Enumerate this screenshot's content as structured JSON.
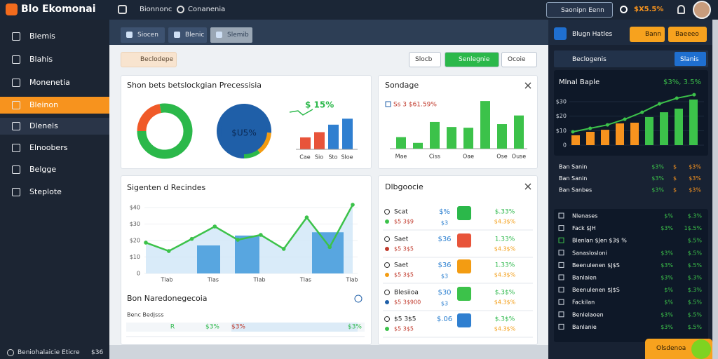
{
  "header": {
    "brand": "Blo Ekomonai",
    "nav": [
      "Bionnonc",
      "Conanenia"
    ],
    "search": "Saonipn Eenn",
    "stat": "$X5.5%"
  },
  "sidebar": {
    "items": [
      "Blemis",
      "Blahis",
      "Monenetia",
      "Bleinon",
      "Dlenels",
      "Elnoobers",
      "Belgge",
      "Steplote"
    ],
    "active": 3,
    "footer": "Beniohalaicie Eticre",
    "footer_value": "$36"
  },
  "tabs": [
    "Siocen",
    "Blenic",
    "Slemib"
  ],
  "toolbar": {
    "filter": "Beclodepe",
    "buttons": [
      "Slocb",
      "Senlegnie",
      "Ocoie"
    ]
  },
  "overview": {
    "title": "Shon bets betslockgian Precessisia",
    "donut": {
      "values": [
        22,
        78
      ],
      "colors": [
        "#f05a28",
        "#2bb84a"
      ]
    },
    "pie": {
      "label": "$U5%",
      "values": [
        76,
        14,
        10
      ],
      "colors": [
        "#1f5fa8",
        "#f39c12",
        "#2bb84a"
      ]
    },
    "bars": {
      "label": "$ 15%",
      "categories": [
        "Cae",
        "Sio",
        "Sto",
        "Sloe"
      ],
      "values": [
        16,
        23,
        33,
        41
      ],
      "colors": [
        "#e8543a",
        "#e8543a",
        "#2f7fd0",
        "#2f7fd0"
      ]
    }
  },
  "sondage": {
    "title": "Sondage",
    "legend": "Ss 3 $61.59%",
    "categories": [
      "Mae",
      null,
      "Ciss",
      null,
      "Oae",
      null,
      "Ose",
      "Ouse"
    ],
    "values": [
      16,
      8,
      37,
      30,
      29,
      66,
      34,
      46
    ],
    "color": "#3cc24a",
    "ylim": [
      0,
      70
    ]
  },
  "trend": {
    "title": "Sigenten d Recindes",
    "ylim": [
      0,
      40
    ],
    "yticks": [
      {
        "value": 40,
        "label": "$40"
      },
      {
        "value": 30,
        "label": "$30"
      },
      {
        "value": 20,
        "label": "$20"
      },
      {
        "value": 10,
        "label": "$10"
      },
      0
    ],
    "x": [
      "Tlab",
      "Tlas",
      "Tlab",
      "Tlas",
      "Tlab"
    ],
    "line": [
      18.7,
      13.6,
      21,
      28.5,
      20.4,
      23.4,
      14.9,
      34,
      16,
      41.7
    ],
    "highlights": [
      17,
      23,
      25
    ],
    "section": "Bon Naredonegecoia",
    "sub": "Benc Bedjsss",
    "cells": [
      "R",
      "$3%",
      "$3%",
      "$3%"
    ]
  },
  "list": {
    "title": "Dlbgoocie",
    "rows": [
      {
        "name": "Scat",
        "sub": "$5 3$9",
        "a": "$%",
        "b": "$3",
        "c": "$.33%",
        "d": "$4.3$%"
      },
      {
        "name": "Saet",
        "sub": "$5 3$5",
        "a": "$36",
        "b": "",
        "c": "1.33%",
        "d": "$4.3$%"
      },
      {
        "name": "Saet",
        "sub": "$5 3$5",
        "a": "$36",
        "b": "$3",
        "c": "1.33%",
        "d": "$4.3$%"
      },
      {
        "name": "Blesiioa",
        "sub": "$5 3$900",
        "a": "$30",
        "b": "$3",
        "c": "$.3$%",
        "d": "$4.3$%"
      },
      {
        "name": "$5 3$5",
        "sub": "$5 3$5",
        "a": "$.06",
        "b": "",
        "c": "$.3$%",
        "d": "$4.3$%"
      }
    ]
  },
  "panel": {
    "title": "Blugn Hatles",
    "buttons": [
      "Bann",
      "Baeeeo"
    ],
    "row": "Beclogenis",
    "row_button": "Slanis",
    "chart": {
      "title": "Mlnal Baple",
      "stat": "$3%, 3.5%",
      "ylim": [
        0,
        30
      ],
      "yticks": [
        {
          "value": 30,
          "label": "$30"
        },
        {
          "value": 20,
          "label": "$20"
        },
        {
          "value": 10,
          "label": "$10"
        },
        0
      ],
      "bars": [
        6.8,
        9.2,
        10.6,
        15,
        15.5,
        19.4,
        22.7,
        25.2,
        31.5
      ],
      "bar_colors": [
        "#f7931e",
        "#f7931e",
        "#f7931e",
        "#f7931e",
        "#f7931e",
        "#3cc24a",
        "#3cc24a",
        "#3cc24a",
        "#3cc24a"
      ],
      "line": [
        9.2,
        11.6,
        14,
        17.9,
        22.7,
        28.5,
        32.4,
        34.8
      ]
    },
    "stats": [
      [
        "Ban Sanin",
        "$3%",
        "$",
        "$3%"
      ],
      [
        "Ban Sanin",
        "$3%",
        "$",
        "$3%"
      ],
      [
        "Ban Sanbes",
        "$3%",
        "$",
        "$3%"
      ]
    ],
    "rows": [
      [
        "Nlenases",
        "$%",
        "$.3%"
      ],
      [
        "Fack $JH",
        "$3%",
        "1$.5%"
      ],
      [
        "Blenlan $Jen $3$ %",
        "",
        "$.5%"
      ],
      [
        "Sanaslosloni",
        "$3%",
        "$.5%"
      ],
      [
        "Beenulenen $J$S",
        "$3%",
        "$.5%"
      ],
      [
        "Banlaien",
        "$3%",
        "$.3%"
      ],
      [
        "Beenulenen $J$S",
        "$%",
        "$.3%"
      ],
      [
        "Fackilan",
        "$%",
        "$.5%"
      ],
      [
        "Benlelaoen",
        "$3%",
        "$.5%"
      ],
      [
        "Banlanie",
        "$3%",
        "$.5%"
      ]
    ],
    "action": "Olsdenoa"
  }
}
